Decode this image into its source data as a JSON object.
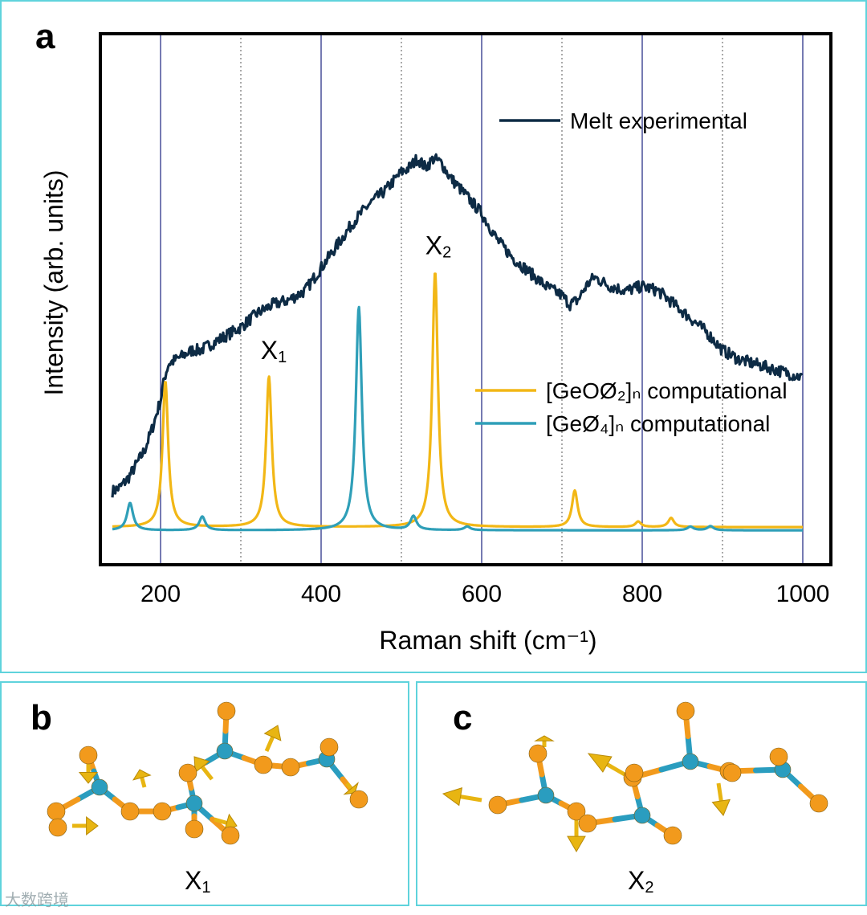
{
  "panels": {
    "a": {
      "label": "a"
    },
    "b": {
      "label": "b",
      "mode_label": "X",
      "mode_sub": "1"
    },
    "c": {
      "label": "c",
      "mode_label": "X",
      "mode_sub": "2"
    }
  },
  "watermark": "大数跨境",
  "colors": {
    "melt": "#0d2b45",
    "geoo2": "#f2b716",
    "geo4": "#2f9fb8",
    "major_grid": "#1a237e",
    "minor_grid": "#555555",
    "frame": "#5fd3dc",
    "ge_atom": "#2a9dbf",
    "o_atom": "#f29a1c",
    "arrow": "#e8b512"
  },
  "chart_data": {
    "type": "line",
    "xlabel": "Raman shift (cm⁻¹)",
    "ylabel": "Intensity (arb. units)",
    "xlim": [
      125,
      1035
    ],
    "ylim": [
      0,
      100
    ],
    "x_ticks": [
      200,
      400,
      600,
      800,
      1000
    ],
    "minor_grid_x": [
      300,
      500,
      700,
      900
    ],
    "y_ticks": [],
    "grid": "vertical",
    "legend": "right",
    "series": [
      {
        "name": "Melt experimental",
        "color_key": "melt",
        "x": [
          140,
          150,
          160,
          170,
          180,
          190,
          200,
          205,
          210,
          220,
          230,
          240,
          250,
          260,
          280,
          300,
          320,
          340,
          360,
          380,
          400,
          420,
          440,
          460,
          480,
          500,
          510,
          520,
          530,
          540,
          550,
          560,
          580,
          600,
          620,
          640,
          660,
          680,
          700,
          710,
          720,
          730,
          740,
          760,
          780,
          800,
          820,
          840,
          860,
          880,
          900,
          920,
          940,
          960,
          980,
          1000
        ],
        "y": [
          9,
          10,
          12,
          15,
          18,
          23,
          29,
          34,
          37,
          38,
          39,
          40,
          40,
          41,
          43,
          45,
          48,
          50,
          51,
          53,
          58,
          63,
          68,
          72,
          75,
          79,
          80,
          82,
          80,
          82,
          81,
          78,
          74,
          70,
          64,
          60,
          57,
          54,
          52,
          50,
          51,
          54,
          56,
          54,
          53,
          54,
          53,
          50,
          47,
          44,
          40,
          38,
          37,
          36,
          35,
          34
        ]
      },
      {
        "name": "[GeOØ₂]ₙ computational",
        "color_key": "geoo2",
        "peaks": [
          {
            "x": 206,
            "y": 32
          },
          {
            "x": 335,
            "y": 33
          },
          {
            "x": 542,
            "y": 56
          },
          {
            "x": 716,
            "y": 8
          },
          {
            "x": 795,
            "y": 1.2
          },
          {
            "x": 836,
            "y": 2
          }
        ],
        "baseline": 1.2
      },
      {
        "name": "[GeØ₄]ₙ computational",
        "color_key": "geo4",
        "peaks": [
          {
            "x": 162,
            "y": 6
          },
          {
            "x": 252,
            "y": 3
          },
          {
            "x": 447,
            "y": 49
          },
          {
            "x": 515,
            "y": 3
          },
          {
            "x": 582,
            "y": 0.8
          },
          {
            "x": 860,
            "y": 0.8
          },
          {
            "x": 885,
            "y": 0.9
          }
        ],
        "baseline": 0.5
      }
    ],
    "legend_entries": [
      {
        "label": "Melt experimental",
        "color_key": "melt"
      },
      {
        "label": "[GeOØ₂]ₙ computational",
        "color_key": "geoo2"
      },
      {
        "label": "[GeØ₄]ₙ computational",
        "color_key": "geo4"
      }
    ],
    "annotations": [
      {
        "text": "X",
        "sub": "1",
        "x": 335,
        "y": 38
      },
      {
        "text": "X",
        "sub": "2",
        "x": 540,
        "y": 61
      }
    ]
  }
}
